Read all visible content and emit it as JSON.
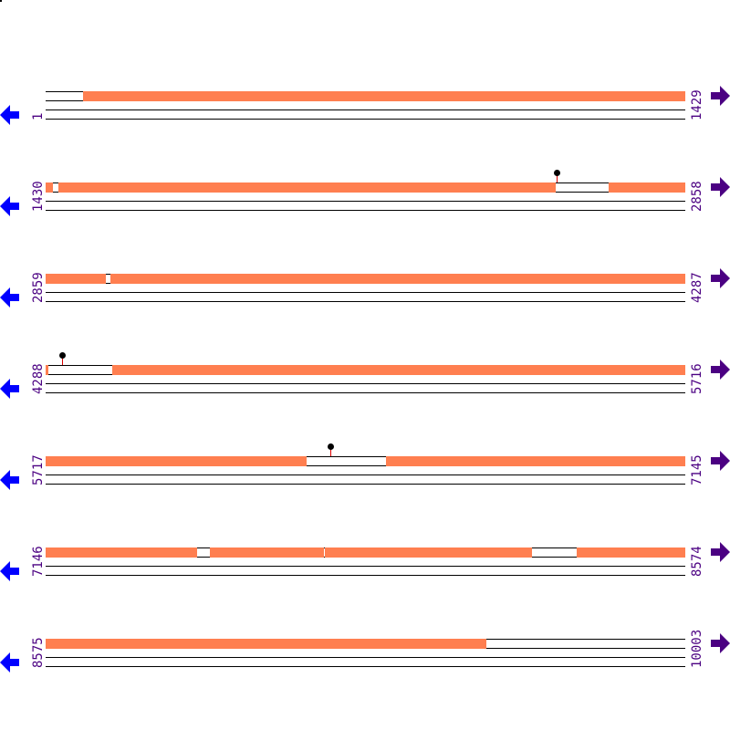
{
  "colors": {
    "covered": "#ff7f50",
    "gap": "#ffffff",
    "start_label": "#4b0082",
    "left_arrow": "#0000ff",
    "right_arrow": "#4b0082",
    "pin_stem": "#dd0000"
  },
  "icons": {
    "left": "arrow-left-icon",
    "right": "arrow-right-icon",
    "marker": "pin-marker-icon"
  },
  "rows": [
    {
      "start": "1",
      "end": "1429",
      "segments": [
        [
          "white",
          1,
          84
        ],
        [
          "orange",
          85,
          1429
        ]
      ],
      "pins": []
    },
    {
      "start": "1430",
      "end": "2858",
      "segments": [
        [
          "orange",
          1430,
          1446
        ],
        [
          "white",
          1447,
          1458
        ],
        [
          "orange",
          1459,
          2569
        ],
        [
          "white",
          2570,
          2686
        ],
        [
          "orange",
          2687,
          2858
        ]
      ],
      "pins": [
        2571
      ]
    },
    {
      "start": "2859",
      "end": "4287",
      "segments": [
        [
          "orange",
          2859,
          2992
        ],
        [
          "white",
          2993,
          3002
        ],
        [
          "orange",
          3003,
          4287
        ]
      ],
      "pins": []
    },
    {
      "start": "4288",
      "end": "5716",
      "segments": [
        [
          "orange",
          4288,
          4294
        ],
        [
          "white",
          4295,
          4435
        ],
        [
          "orange",
          4436,
          5716
        ]
      ],
      "pins": [
        4325
      ]
    },
    {
      "start": "5717",
      "end": "7145",
      "segments": [
        [
          "orange",
          5717,
          6299
        ],
        [
          "white",
          6300,
          6477
        ],
        [
          "orange",
          6478,
          7145
        ]
      ],
      "pins": [
        6354
      ]
    },
    {
      "start": "7146",
      "end": "8574",
      "segments": [
        [
          "orange",
          7146,
          7483
        ],
        [
          "white",
          7484,
          7511
        ],
        [
          "orange",
          7512,
          7767
        ],
        [
          "white",
          7768,
          7769
        ],
        [
          "orange",
          7770,
          8232
        ],
        [
          "white",
          8233,
          8332
        ],
        [
          "orange",
          8333,
          8574
        ]
      ],
      "pins": []
    },
    {
      "start": "8575",
      "end": "10003",
      "segments": [
        [
          "orange",
          8575,
          9558
        ],
        [
          "white",
          9559,
          10003
        ]
      ],
      "pins": []
    }
  ]
}
